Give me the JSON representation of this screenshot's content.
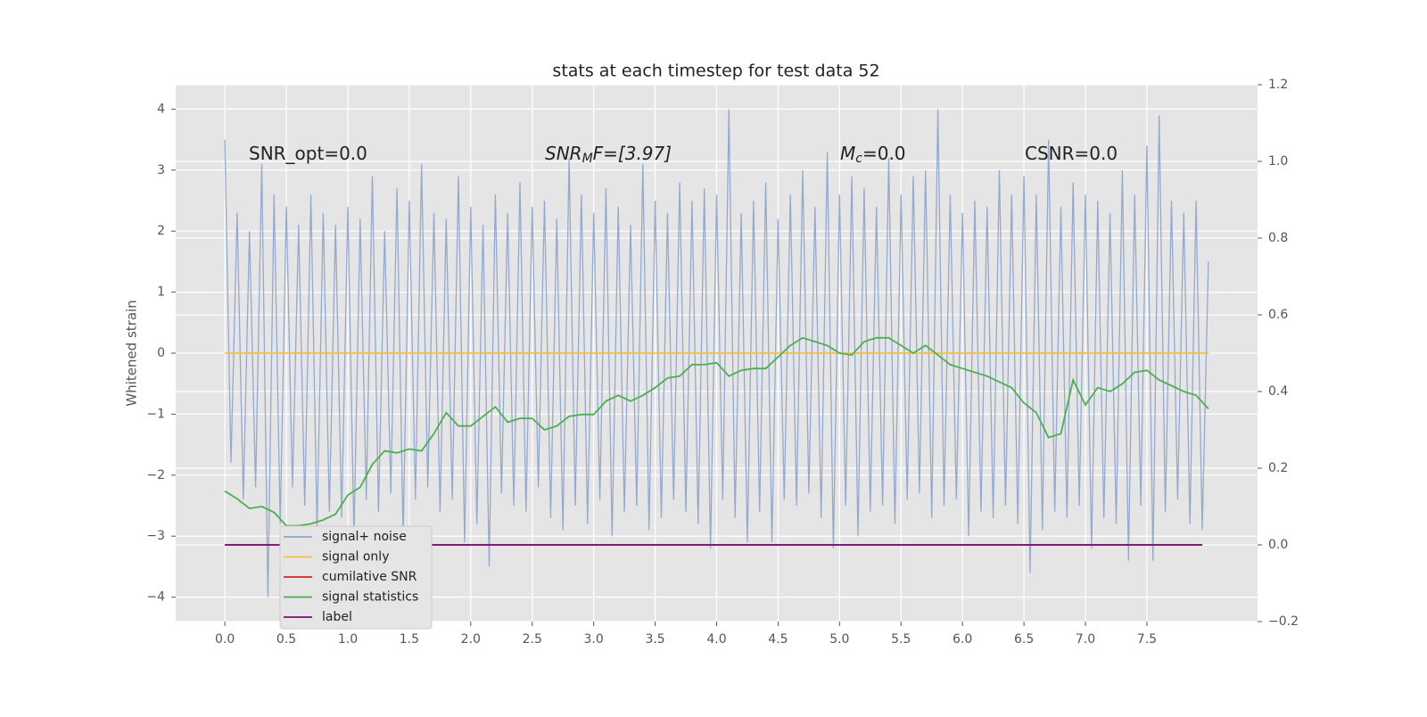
{
  "chart_data": {
    "type": "line",
    "title": "stats at each timestep for test data 52",
    "ylabel": "Whitened strain",
    "xlim": [
      -0.4,
      8.4
    ],
    "ylim": [
      -4.4,
      4.4
    ],
    "y2lim": [
      -0.2,
      1.2
    ],
    "xticks": [
      0.0,
      0.5,
      1.0,
      1.5,
      2.0,
      2.5,
      3.0,
      3.5,
      4.0,
      4.5,
      5.0,
      5.5,
      6.0,
      6.5,
      7.0,
      7.5
    ],
    "yticks": [
      -4,
      -3,
      -2,
      -1,
      0,
      1,
      2,
      3,
      4
    ],
    "y2ticks": [
      -0.2,
      0.0,
      0.2,
      0.4,
      0.6,
      0.8,
      1.0,
      1.2
    ],
    "grid": true,
    "legend": "lower left",
    "annotations": [
      {
        "parts": [
          "SNR_opt=0.0"
        ]
      },
      {
        "parts": [
          "SNR",
          "M",
          "F=[3.97]"
        ]
      },
      {
        "parts": [
          "M",
          "c",
          "=0.0"
        ]
      },
      {
        "parts": [
          "CSNR=0.0"
        ]
      }
    ],
    "series": [
      {
        "name": "signal+ noise",
        "color": "#8fa5cc",
        "x": [
          0,
          0.05,
          0.1,
          0.15,
          0.2,
          0.25,
          0.3,
          0.35,
          0.4,
          0.45,
          0.5,
          0.55,
          0.6,
          0.65,
          0.7,
          0.75,
          0.8,
          0.85,
          0.9,
          0.95,
          1,
          1.05,
          1.1,
          1.15,
          1.2,
          1.25,
          1.3,
          1.35,
          1.4,
          1.45,
          1.5,
          1.55,
          1.6,
          1.65,
          1.7,
          1.75,
          1.8,
          1.85,
          1.9,
          1.95,
          2,
          2.05,
          2.1,
          2.15,
          2.2,
          2.25,
          2.3,
          2.35,
          2.4,
          2.45,
          2.5,
          2.55,
          2.6,
          2.65,
          2.7,
          2.75,
          2.8,
          2.85,
          2.9,
          2.95,
          3,
          3.05,
          3.1,
          3.15,
          3.2,
          3.25,
          3.3,
          3.35,
          3.4,
          3.45,
          3.5,
          3.55,
          3.6,
          3.65,
          3.7,
          3.75,
          3.8,
          3.85,
          3.9,
          3.95,
          4,
          4.05,
          4.1,
          4.15,
          4.2,
          4.25,
          4.3,
          4.35,
          4.4,
          4.45,
          4.5,
          4.55,
          4.6,
          4.65,
          4.7,
          4.75,
          4.8,
          4.85,
          4.9,
          4.95,
          5,
          5.05,
          5.1,
          5.15,
          5.2,
          5.25,
          5.3,
          5.35,
          5.4,
          5.45,
          5.5,
          5.55,
          5.6,
          5.65,
          5.7,
          5.75,
          5.8,
          5.85,
          5.9,
          5.95,
          6,
          6.05,
          6.1,
          6.15,
          6.2,
          6.25,
          6.3,
          6.35,
          6.4,
          6.45,
          6.5,
          6.55,
          6.6,
          6.65,
          6.7,
          6.75,
          6.8,
          6.85,
          6.9,
          6.95,
          7,
          7.05,
          7.1,
          7.15,
          7.2,
          7.25,
          7.3,
          7.35,
          7.4,
          7.45,
          7.5,
          7.55,
          7.6,
          7.65,
          7.7,
          7.75,
          7.8,
          7.85,
          7.9,
          7.95,
          8
        ],
        "values": [
          3.5,
          -1.8,
          2.3,
          -2.4,
          2.0,
          -2.2,
          3.1,
          -4.0,
          2.6,
          -2.8,
          2.4,
          -2.2,
          2.1,
          -2.5,
          2.6,
          -2.9,
          2.3,
          -2.6,
          2.1,
          -2.7,
          2.4,
          -3.0,
          2.2,
          -2.4,
          2.9,
          -2.6,
          2.0,
          -2.3,
          2.7,
          -3.0,
          2.5,
          -2.4,
          3.1,
          -2.2,
          2.3,
          -2.6,
          2.2,
          -2.4,
          2.9,
          -3.1,
          2.4,
          -2.8,
          2.1,
          -3.5,
          2.6,
          -2.3,
          2.3,
          -2.5,
          2.8,
          -2.6,
          2.4,
          -2.2,
          2.5,
          -2.7,
          2.2,
          -2.9,
          3.2,
          -2.5,
          2.6,
          -2.8,
          2.3,
          -2.4,
          2.7,
          -3.0,
          2.4,
          -2.6,
          2.1,
          -2.5,
          3.1,
          -2.9,
          2.5,
          -2.7,
          2.3,
          -2.4,
          2.8,
          -2.6,
          2.5,
          -2.8,
          2.7,
          -3.2,
          2.6,
          -2.4,
          4.0,
          -2.7,
          2.3,
          -3.1,
          2.5,
          -2.6,
          2.8,
          -3.1,
          2.2,
          -2.4,
          2.6,
          -2.5,
          3.0,
          -2.3,
          2.4,
          -2.7,
          3.3,
          -3.2,
          2.6,
          -2.5,
          2.9,
          -3.0,
          2.7,
          -2.6,
          2.4,
          -2.5,
          3.2,
          -2.8,
          2.6,
          -2.4,
          2.9,
          -2.3,
          3.0,
          -2.7,
          4.0,
          -2.5,
          2.6,
          -2.4,
          2.3,
          -3.0,
          2.5,
          -2.6,
          2.4,
          -2.7,
          3.0,
          -2.5,
          2.6,
          -2.8,
          2.9,
          -3.6,
          2.6,
          -2.9,
          3.5,
          -2.6,
          2.4,
          -2.7,
          2.8,
          -2.5,
          2.6,
          -3.2,
          2.5,
          -2.7,
          2.3,
          -2.8,
          3.0,
          -3.4,
          2.6,
          -2.5,
          3.4,
          -3.4,
          3.9,
          -2.6,
          2.5,
          -2.4,
          2.3,
          -2.8,
          2.5,
          -2.9,
          1.5
        ]
      },
      {
        "name": "signal only",
        "color": "#f0c040",
        "x": [
          0,
          8
        ],
        "values": [
          0,
          0
        ]
      },
      {
        "name": "cumilative SNR",
        "color": "#d62728",
        "axis": "y2",
        "x": [
          0,
          7.95
        ],
        "values": [
          0,
          0
        ]
      },
      {
        "name": "signal statistics",
        "color": "#4caf50",
        "axis": "y2",
        "x": [
          0,
          0.1,
          0.2,
          0.3,
          0.4,
          0.5,
          0.6,
          0.7,
          0.8,
          0.9,
          1,
          1.1,
          1.2,
          1.3,
          1.4,
          1.5,
          1.6,
          1.7,
          1.8,
          1.9,
          2,
          2.1,
          2.2,
          2.3,
          2.4,
          2.5,
          2.6,
          2.7,
          2.8,
          2.9,
          3,
          3.1,
          3.2,
          3.3,
          3.4,
          3.5,
          3.6,
          3.7,
          3.8,
          3.9,
          4,
          4.1,
          4.2,
          4.3,
          4.4,
          4.5,
          4.6,
          4.7,
          4.8,
          4.9,
          5,
          5.1,
          5.2,
          5.3,
          5.4,
          5.5,
          5.6,
          5.7,
          5.8,
          5.9,
          6,
          6.1,
          6.2,
          6.3,
          6.4,
          6.5,
          6.6,
          6.7,
          6.8,
          6.9,
          7,
          7.1,
          7.2,
          7.3,
          7.4,
          7.5,
          7.6,
          7.7,
          7.8,
          7.9,
          8
        ],
        "values": [
          0.14,
          0.12,
          0.095,
          0.1,
          0.085,
          0.05,
          0.05,
          0.055,
          0.065,
          0.08,
          0.13,
          0.15,
          0.21,
          0.245,
          0.24,
          0.25,
          0.245,
          0.29,
          0.345,
          0.31,
          0.31,
          0.335,
          0.36,
          0.32,
          0.33,
          0.33,
          0.3,
          0.31,
          0.335,
          0.34,
          0.34,
          0.375,
          0.39,
          0.375,
          0.39,
          0.41,
          0.435,
          0.44,
          0.47,
          0.47,
          0.475,
          0.44,
          0.455,
          0.46,
          0.46,
          0.49,
          0.52,
          0.54,
          0.53,
          0.52,
          0.5,
          0.495,
          0.53,
          0.54,
          0.54,
          0.52,
          0.5,
          0.52,
          0.495,
          0.47,
          0.46,
          0.45,
          0.44,
          0.425,
          0.41,
          0.37,
          0.345,
          0.28,
          0.29,
          0.43,
          0.365,
          0.41,
          0.4,
          0.42,
          0.45,
          0.455,
          0.43,
          0.415,
          0.4,
          0.39,
          0.355
        ]
      },
      {
        "name": "label",
        "color": "#7b0f7b",
        "axis": "y2",
        "x": [
          0,
          7.95
        ],
        "values": [
          0,
          0
        ]
      }
    ]
  }
}
